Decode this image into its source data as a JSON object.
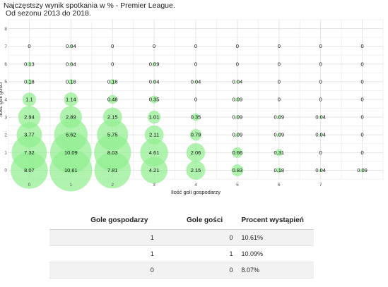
{
  "chart_data": {
    "type": "scatter",
    "title": "Najczęstszy wynik spotkania w % - Premier League.",
    "subtitle": " Od sezonu 2013 do 2018.",
    "xlabel": "Ilość goli gospodarzy",
    "ylabel": "Ilość goli gości",
    "x_ticks": [
      0,
      1,
      2,
      3,
      4,
      5,
      6,
      7
    ],
    "y_ticks": [
      0,
      1,
      2,
      3,
      4,
      5,
      6,
      7,
      8
    ],
    "xlim": [
      -0.5,
      8.5
    ],
    "ylim": [
      -0.5,
      8.5
    ],
    "grid": true,
    "bubble_color": "#90ee90",
    "points": [
      {
        "home": 0,
        "away": 0,
        "pct": 8.07,
        "label": "8.07"
      },
      {
        "home": 1,
        "away": 0,
        "pct": 10.61,
        "label": "10.61"
      },
      {
        "home": 2,
        "away": 0,
        "pct": 7.81,
        "label": "7.81"
      },
      {
        "home": 3,
        "away": 0,
        "pct": 4.21,
        "label": "4.21"
      },
      {
        "home": 4,
        "away": 0,
        "pct": 2.15,
        "label": "2.15"
      },
      {
        "home": 5,
        "away": 0,
        "pct": 0.83,
        "label": "0.83"
      },
      {
        "home": 6,
        "away": 0,
        "pct": 0.18,
        "label": "0.18"
      },
      {
        "home": 7,
        "away": 0,
        "pct": 0.04,
        "label": "0.04"
      },
      {
        "home": 8,
        "away": 0,
        "pct": 0.09,
        "label": "0.09"
      },
      {
        "home": 0,
        "away": 1,
        "pct": 7.32,
        "label": "7.32"
      },
      {
        "home": 1,
        "away": 1,
        "pct": 10.09,
        "label": "10.09"
      },
      {
        "home": 2,
        "away": 1,
        "pct": 8.03,
        "label": "8.03"
      },
      {
        "home": 3,
        "away": 1,
        "pct": 4.61,
        "label": "4.61"
      },
      {
        "home": 4,
        "away": 1,
        "pct": 2.06,
        "label": "2.06"
      },
      {
        "home": 5,
        "away": 1,
        "pct": 0.66,
        "label": "0.66"
      },
      {
        "home": 6,
        "away": 1,
        "pct": 0.31,
        "label": "0.31"
      },
      {
        "home": 7,
        "away": 1,
        "pct": 0,
        "label": "0"
      },
      {
        "home": 8,
        "away": 1,
        "pct": 0,
        "label": "0"
      },
      {
        "home": 0,
        "away": 2,
        "pct": 3.77,
        "label": "3.77"
      },
      {
        "home": 1,
        "away": 2,
        "pct": 6.62,
        "label": "6.62"
      },
      {
        "home": 2,
        "away": 2,
        "pct": 5.75,
        "label": "5.75"
      },
      {
        "home": 3,
        "away": 2,
        "pct": 2.11,
        "label": "2.11"
      },
      {
        "home": 4,
        "away": 2,
        "pct": 0.79,
        "label": "0.79"
      },
      {
        "home": 5,
        "away": 2,
        "pct": 0.09,
        "label": "0.09"
      },
      {
        "home": 6,
        "away": 2,
        "pct": 0.09,
        "label": "0.09"
      },
      {
        "home": 7,
        "away": 2,
        "pct": 0.04,
        "label": "0.04"
      },
      {
        "home": 8,
        "away": 2,
        "pct": 0,
        "label": "0"
      },
      {
        "home": 0,
        "away": 3,
        "pct": 2.94,
        "label": "2.94"
      },
      {
        "home": 1,
        "away": 3,
        "pct": 2.89,
        "label": "2.89"
      },
      {
        "home": 2,
        "away": 3,
        "pct": 2.15,
        "label": "2.15"
      },
      {
        "home": 3,
        "away": 3,
        "pct": 1.01,
        "label": "1.01"
      },
      {
        "home": 4,
        "away": 3,
        "pct": 0.35,
        "label": "0.35"
      },
      {
        "home": 5,
        "away": 3,
        "pct": 0.09,
        "label": "0.09"
      },
      {
        "home": 6,
        "away": 3,
        "pct": 0.09,
        "label": "0.09"
      },
      {
        "home": 7,
        "away": 3,
        "pct": 0.04,
        "label": "0.04"
      },
      {
        "home": 8,
        "away": 3,
        "pct": 0,
        "label": "0"
      },
      {
        "home": 0,
        "away": 4,
        "pct": 1.1,
        "label": "1.1"
      },
      {
        "home": 1,
        "away": 4,
        "pct": 1.14,
        "label": "1.14"
      },
      {
        "home": 2,
        "away": 4,
        "pct": 0.48,
        "label": "0.48"
      },
      {
        "home": 3,
        "away": 4,
        "pct": 0.35,
        "label": "0.35"
      },
      {
        "home": 4,
        "away": 4,
        "pct": 0,
        "label": "0"
      },
      {
        "home": 5,
        "away": 4,
        "pct": 0.09,
        "label": "0.09"
      },
      {
        "home": 6,
        "away": 4,
        "pct": 0,
        "label": "0"
      },
      {
        "home": 7,
        "away": 4,
        "pct": 0,
        "label": "0"
      },
      {
        "home": 8,
        "away": 4,
        "pct": 0,
        "label": "0"
      },
      {
        "home": 0,
        "away": 5,
        "pct": 0.18,
        "label": "0.18"
      },
      {
        "home": 1,
        "away": 5,
        "pct": 0.18,
        "label": "0.18"
      },
      {
        "home": 2,
        "away": 5,
        "pct": 0.18,
        "label": "0.18"
      },
      {
        "home": 3,
        "away": 5,
        "pct": 0.04,
        "label": "0.04"
      },
      {
        "home": 4,
        "away": 5,
        "pct": 0.04,
        "label": "0.04"
      },
      {
        "home": 5,
        "away": 5,
        "pct": 0.04,
        "label": "0.04"
      },
      {
        "home": 6,
        "away": 5,
        "pct": 0,
        "label": "0"
      },
      {
        "home": 7,
        "away": 5,
        "pct": 0,
        "label": "0"
      },
      {
        "home": 8,
        "away": 5,
        "pct": 0,
        "label": "0"
      },
      {
        "home": 0,
        "away": 6,
        "pct": 0.13,
        "label": "0.13"
      },
      {
        "home": 1,
        "away": 6,
        "pct": 0.04,
        "label": "0.04"
      },
      {
        "home": 2,
        "away": 6,
        "pct": 0,
        "label": "0"
      },
      {
        "home": 3,
        "away": 6,
        "pct": 0.09,
        "label": "0.09"
      },
      {
        "home": 4,
        "away": 6,
        "pct": 0,
        "label": "0"
      },
      {
        "home": 5,
        "away": 6,
        "pct": 0,
        "label": "0"
      },
      {
        "home": 6,
        "away": 6,
        "pct": 0,
        "label": "0"
      },
      {
        "home": 7,
        "away": 6,
        "pct": 0,
        "label": "0"
      },
      {
        "home": 8,
        "away": 6,
        "pct": 0,
        "label": "0"
      },
      {
        "home": 0,
        "away": 7,
        "pct": 0,
        "label": "0"
      },
      {
        "home": 1,
        "away": 7,
        "pct": 0.04,
        "label": "0.04"
      },
      {
        "home": 2,
        "away": 7,
        "pct": 0,
        "label": "0"
      },
      {
        "home": 3,
        "away": 7,
        "pct": 0,
        "label": "0"
      },
      {
        "home": 4,
        "away": 7,
        "pct": 0,
        "label": "0"
      },
      {
        "home": 5,
        "away": 7,
        "pct": 0,
        "label": "0"
      },
      {
        "home": 6,
        "away": 7,
        "pct": 0,
        "label": "0"
      },
      {
        "home": 7,
        "away": 7,
        "pct": 0,
        "label": "0"
      },
      {
        "home": 8,
        "away": 7,
        "pct": 0,
        "label": "0"
      }
    ]
  },
  "table": {
    "headers": [
      "Gole gospodarzy",
      "Gole gości",
      "Procent wystąpień"
    ],
    "rows": [
      [
        "1",
        "0",
        "10.61%"
      ],
      [
        "1",
        "1",
        "10.09%"
      ],
      [
        "0",
        "0",
        "8.07%"
      ]
    ]
  }
}
